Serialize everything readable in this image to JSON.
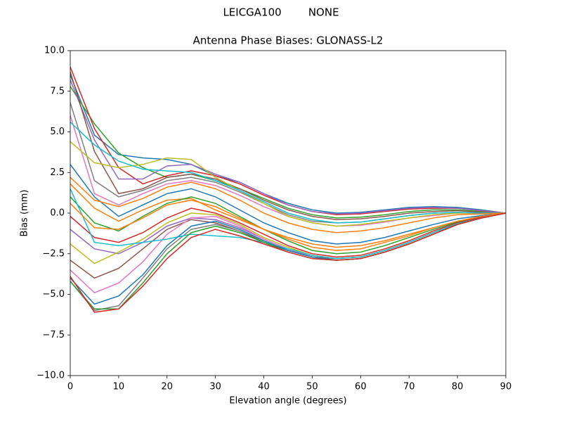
{
  "chart_data": {
    "type": "line",
    "suptitle": "LEICGA100        NONE",
    "title": "Antenna Phase Biases: GLONASS-L2",
    "xlabel": "Elevation angle (degrees)",
    "ylabel": "Bias (mm)",
    "xlim": [
      0,
      90
    ],
    "ylim": [
      -10,
      10
    ],
    "xticks": [
      0,
      10,
      20,
      30,
      40,
      50,
      60,
      70,
      80,
      90
    ],
    "yticks": [
      {
        "value": -10,
        "label": "−10.0"
      },
      {
        "value": -7.5,
        "label": "−7.5"
      },
      {
        "value": -5,
        "label": "−5.0"
      },
      {
        "value": -2.5,
        "label": "−2.5"
      },
      {
        "value": 0,
        "label": "0.0"
      },
      2.5,
      {
        "value": 5,
        "label": "5.0"
      },
      7.5,
      {
        "value": 10,
        "label": "10.0"
      }
    ],
    "grid": false,
    "x": [
      0,
      5,
      10,
      15,
      20,
      25,
      30,
      35,
      40,
      45,
      50,
      55,
      60,
      65,
      70,
      75,
      80,
      85,
      90
    ],
    "series": [
      {
        "color": "#1f77b4",
        "values": [
          8.5,
          4.8,
          3.6,
          3.4,
          3.3,
          3.0,
          2.3,
          1.9,
          1.2,
          0.6,
          0.2,
          0.0,
          0.05,
          0.2,
          0.35,
          0.4,
          0.35,
          0.2,
          0
        ]
      },
      {
        "color": "#ff7f0e",
        "values": [
          1.8,
          0.3,
          -0.5,
          0.2,
          0.8,
          0.9,
          0.2,
          -0.4,
          -1.0,
          -1.5,
          -1.9,
          -2.1,
          -2.0,
          -1.7,
          -1.3,
          -0.9,
          -0.5,
          -0.2,
          0
        ]
      },
      {
        "color": "#2ca02c",
        "values": [
          7.8,
          5.5,
          3.7,
          2.8,
          2.2,
          2.4,
          2.0,
          1.5,
          0.9,
          0.3,
          -0.1,
          -0.3,
          -0.25,
          -0.1,
          0.1,
          0.2,
          0.2,
          0.1,
          0
        ]
      },
      {
        "color": "#d62728",
        "values": [
          9.0,
          5.2,
          2.8,
          1.8,
          2.3,
          2.6,
          2.3,
          1.8,
          1.1,
          0.5,
          0.1,
          -0.1,
          -0.05,
          0.1,
          0.25,
          0.3,
          0.3,
          0.15,
          0
        ]
      },
      {
        "color": "#9467bd",
        "values": [
          8.2,
          4.5,
          2.1,
          2.1,
          2.9,
          3.0,
          2.4,
          1.9,
          1.2,
          0.5,
          0.1,
          -0.05,
          0.0,
          0.15,
          0.3,
          0.35,
          0.3,
          0.15,
          0
        ]
      },
      {
        "color": "#8c564b",
        "values": [
          8.7,
          3.8,
          1.2,
          1.5,
          2.2,
          2.4,
          2.1,
          1.5,
          0.8,
          0.2,
          -0.2,
          -0.4,
          -0.35,
          -0.2,
          0.0,
          0.1,
          0.15,
          0.05,
          0
        ]
      },
      {
        "color": "#e377c2",
        "values": [
          6.0,
          1.2,
          0.5,
          1.2,
          1.8,
          2.0,
          1.7,
          1.1,
          0.4,
          -0.2,
          -0.6,
          -0.8,
          -0.75,
          -0.55,
          -0.3,
          -0.15,
          0.0,
          0.0,
          0
        ]
      },
      {
        "color": "#7f7f7f",
        "values": [
          6.8,
          2.0,
          1.0,
          1.4,
          2.0,
          2.2,
          1.9,
          1.3,
          0.6,
          -0.1,
          -0.5,
          -0.6,
          -0.55,
          -0.35,
          -0.15,
          0.0,
          0.05,
          0.0,
          0
        ]
      },
      {
        "color": "#bcbd22",
        "values": [
          4.4,
          3.1,
          2.8,
          3.0,
          3.4,
          3.3,
          2.2,
          1.4,
          0.6,
          -0.2,
          -0.6,
          -0.8,
          -0.7,
          -0.5,
          -0.3,
          -0.1,
          0.0,
          0.0,
          0
        ]
      },
      {
        "color": "#17becf",
        "values": [
          5.6,
          4.2,
          3.2,
          2.7,
          2.6,
          2.5,
          2.0,
          1.4,
          0.7,
          0.0,
          -0.4,
          -0.6,
          -0.55,
          -0.35,
          -0.15,
          0.0,
          0.05,
          0.0,
          0
        ]
      },
      {
        "color": "#1f77b4",
        "values": [
          3.0,
          1.0,
          -0.2,
          0.5,
          1.2,
          1.5,
          1.0,
          0.2,
          -0.6,
          -1.2,
          -1.7,
          -1.9,
          -1.8,
          -1.5,
          -1.1,
          -0.7,
          -0.35,
          -0.15,
          0
        ]
      },
      {
        "color": "#ff7f0e",
        "values": [
          2.2,
          0.8,
          0.4,
          0.9,
          1.6,
          1.9,
          1.5,
          0.8,
          0.0,
          -0.6,
          -1.0,
          -1.2,
          -1.1,
          -0.9,
          -0.6,
          -0.3,
          -0.1,
          -0.05,
          0
        ]
      },
      {
        "color": "#2ca02c",
        "values": [
          1.0,
          -0.6,
          -1.1,
          -0.2,
          0.6,
          1.0,
          0.6,
          -0.2,
          -1.0,
          -1.7,
          -2.3,
          -2.5,
          -2.4,
          -2.0,
          -1.5,
          -1.0,
          -0.55,
          -0.25,
          0
        ]
      },
      {
        "color": "#d62728",
        "values": [
          -0.2,
          -1.5,
          -1.8,
          -1.2,
          -0.3,
          0.3,
          0.0,
          -0.6,
          -1.3,
          -2.0,
          -2.5,
          -2.7,
          -2.6,
          -2.2,
          -1.7,
          -1.1,
          -0.6,
          -0.25,
          0
        ]
      },
      {
        "color": "#9467bd",
        "values": [
          -1.0,
          -2.2,
          -2.5,
          -1.8,
          -0.8,
          -0.3,
          -0.4,
          -0.9,
          -1.6,
          -2.2,
          -2.6,
          -2.8,
          -2.7,
          -2.3,
          -1.8,
          -1.2,
          -0.65,
          -0.3,
          0
        ]
      },
      {
        "color": "#8c564b",
        "values": [
          -2.9,
          -4.0,
          -3.4,
          -2.2,
          -1.0,
          -0.4,
          -0.6,
          -1.1,
          -1.8,
          -2.3,
          -2.7,
          -2.8,
          -2.7,
          -2.3,
          -1.8,
          -1.2,
          -0.65,
          -0.3,
          0
        ]
      },
      {
        "color": "#e377c2",
        "values": [
          -3.5,
          -4.9,
          -4.3,
          -3.0,
          -1.3,
          -0.3,
          -0.2,
          -0.8,
          -1.6,
          -2.2,
          -2.7,
          -2.9,
          -2.8,
          -2.4,
          -1.9,
          -1.3,
          -0.7,
          -0.3,
          0
        ]
      },
      {
        "color": "#7f7f7f",
        "values": [
          -4.2,
          -6.0,
          -5.7,
          -4.0,
          -2.2,
          -1.0,
          -0.7,
          -1.1,
          -1.7,
          -2.3,
          -2.7,
          -2.9,
          -2.8,
          -2.4,
          -1.9,
          -1.3,
          -0.7,
          -0.3,
          0
        ]
      },
      {
        "color": "#bcbd22",
        "values": [
          -1.9,
          -3.1,
          -2.4,
          -1.6,
          -0.6,
          0.0,
          -0.1,
          -0.7,
          -1.5,
          -2.1,
          -2.6,
          -2.8,
          -2.7,
          -2.3,
          -1.8,
          -1.2,
          -0.65,
          -0.3,
          0
        ]
      },
      {
        "color": "#17becf",
        "values": [
          1.5,
          -1.8,
          -2.0,
          -1.8,
          -1.6,
          -1.3,
          -1.4,
          -1.5,
          -1.8,
          -2.2,
          -2.6,
          -2.8,
          -2.7,
          -2.3,
          -1.8,
          -1.2,
          -0.65,
          -0.3,
          0
        ]
      },
      {
        "color": "#1f77b4",
        "values": [
          -4.0,
          -5.6,
          -5.1,
          -3.8,
          -2.0,
          -0.8,
          -0.5,
          -1.0,
          -1.7,
          -2.3,
          -2.7,
          -2.9,
          -2.8,
          -2.4,
          -1.9,
          -1.3,
          -0.7,
          -0.3,
          0
        ]
      },
      {
        "color": "#ff7f0e",
        "values": [
          0.6,
          -0.9,
          -1.0,
          -0.3,
          0.5,
          0.8,
          0.4,
          -0.3,
          -1.0,
          -1.6,
          -2.1,
          -2.3,
          -2.2,
          -1.8,
          -1.4,
          -0.9,
          -0.5,
          -0.2,
          0
        ]
      },
      {
        "color": "#2ca02c",
        "values": [
          -4.2,
          -5.9,
          -5.9,
          -4.3,
          -2.5,
          -1.2,
          -0.8,
          -1.2,
          -1.8,
          -2.4,
          -2.8,
          -2.9,
          -2.8,
          -2.4,
          -1.9,
          -1.3,
          -0.7,
          -0.3,
          0
        ]
      },
      {
        "color": "#d62728",
        "values": [
          -3.9,
          -6.1,
          -5.9,
          -4.5,
          -2.8,
          -1.5,
          -1.0,
          -1.4,
          -1.9,
          -2.4,
          -2.8,
          -2.9,
          -2.8,
          -2.4,
          -1.9,
          -1.3,
          -0.7,
          -0.3,
          0
        ]
      }
    ]
  }
}
